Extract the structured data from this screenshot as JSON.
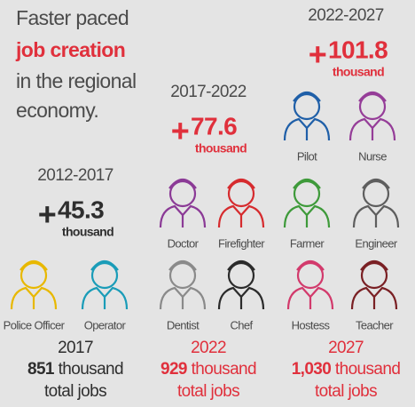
{
  "headline": {
    "lines": [
      "Faster paced",
      "job creation",
      "in the regional",
      "economy."
    ]
  },
  "periods": [
    {
      "period": "2012-2017",
      "sign": "+",
      "value": "45.3",
      "unit": "thousand"
    },
    {
      "period": "2017-2022",
      "sign": "+",
      "value": "77.6",
      "unit": "thousand"
    },
    {
      "period": "2022-2027",
      "sign": "+",
      "value": "101.8",
      "unit": "thousand"
    }
  ],
  "jobs": [
    {
      "label": "Police Officer",
      "color": "#e8b800"
    },
    {
      "label": "Operator",
      "color": "#1a9cb8"
    },
    {
      "label": "Doctor",
      "color": "#8b3a96"
    },
    {
      "label": "Firefighter",
      "color": "#d62b2e"
    },
    {
      "label": "Dentist",
      "color": "#8a8a8a"
    },
    {
      "label": "Chef",
      "color": "#2b2b2b"
    },
    {
      "label": "Pilot",
      "color": "#1f5fa8"
    },
    {
      "label": "Nurse",
      "color": "#953d98"
    },
    {
      "label": "Farmer",
      "color": "#3e9a3a"
    },
    {
      "label": "Engineer",
      "color": "#5e5e5e"
    },
    {
      "label": "Hostess",
      "color": "#d23a6c"
    },
    {
      "label": "Teacher",
      "color": "#7a2024"
    }
  ],
  "totals": [
    {
      "year": "2017",
      "number": "851",
      "unit": "thousand",
      "note": "total jobs"
    },
    {
      "year": "2022",
      "number": "929",
      "unit": "thousand",
      "note": "total jobs"
    },
    {
      "year": "2027",
      "number": "1,030",
      "unit": "thousand",
      "note": "total jobs"
    }
  ]
}
